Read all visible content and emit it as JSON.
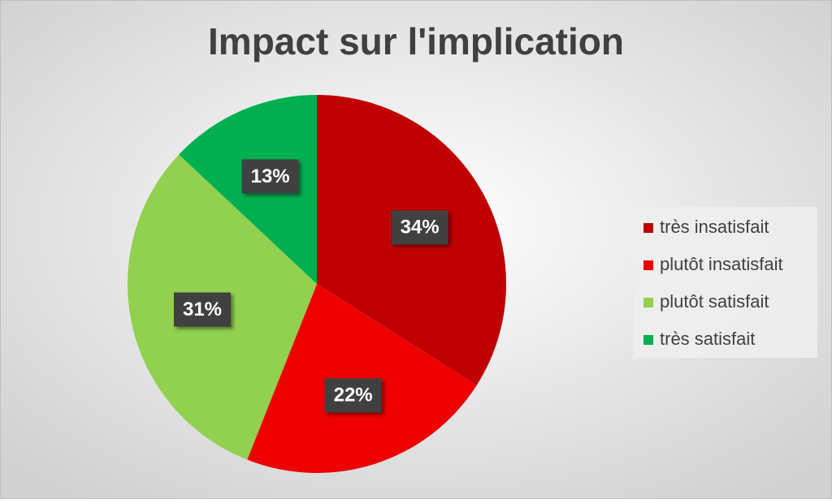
{
  "chart_data": {
    "type": "pie",
    "title": "Impact sur l'implication",
    "categories": [
      "très insatisfait",
      "plutôt insatisfait",
      "plutôt satisfait",
      "très satisfait"
    ],
    "values": [
      34,
      22,
      31,
      13
    ],
    "value_labels": [
      "34%",
      "22%",
      "31%",
      "13%"
    ],
    "colors": [
      "#c00000",
      "#ee0000",
      "#92d050",
      "#00b050"
    ],
    "legend": "right"
  }
}
